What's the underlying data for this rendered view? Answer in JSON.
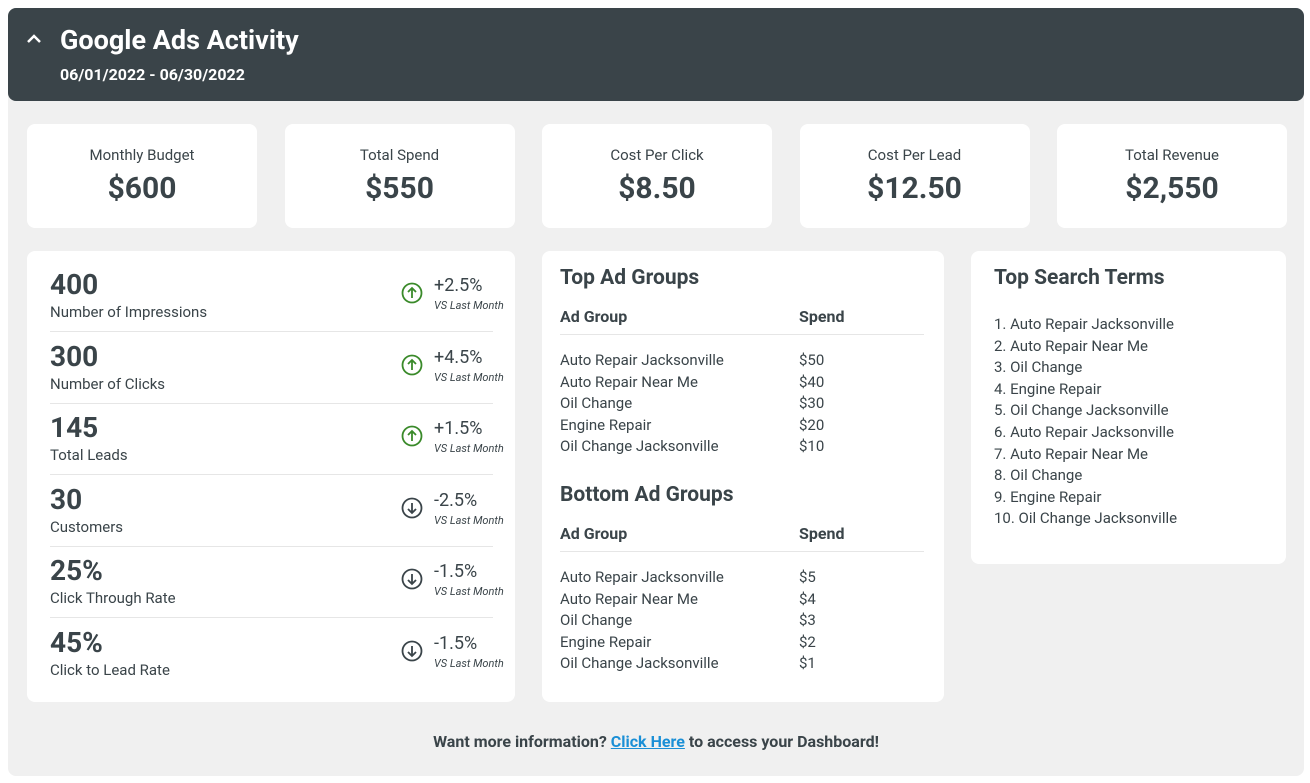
{
  "header": {
    "title": "Google Ads Activity",
    "date_range": "06/01/2022 - 06/30/2022"
  },
  "kpis": [
    {
      "label": "Monthly Budget",
      "value": "$600"
    },
    {
      "label": "Total Spend",
      "value": "$550"
    },
    {
      "label": "Cost Per Click",
      "value": "$8.50"
    },
    {
      "label": "Cost Per Lead",
      "value": "$12.50"
    },
    {
      "label": "Total Revenue",
      "value": "$2,550"
    }
  ],
  "metrics": [
    {
      "value": "400",
      "label": "Number of Impressions",
      "change": "+2.5%",
      "compare": "VS Last Month"
    },
    {
      "value": "300",
      "label": "Number of Clicks",
      "change": "+4.5%",
      "compare": "VS Last Month"
    },
    {
      "value": "145",
      "label": "Total Leads",
      "change": "+1.5%",
      "compare": "VS Last Month"
    },
    {
      "value": "30",
      "label": "Customers",
      "change": "-2.5%",
      "compare": "VS Last Month"
    },
    {
      "value": "25%",
      "label": "Click Through Rate",
      "change": "-1.5%",
      "compare": "VS Last Month"
    },
    {
      "value": "45%",
      "label": "Click to Lead Rate",
      "change": "-1.5%",
      "compare": "VS Last Month"
    }
  ],
  "top_ad_groups": {
    "title": "Top Ad Groups",
    "columns": [
      "Ad Group",
      "Spend"
    ],
    "rows": [
      [
        "Auto Repair Jacksonville",
        "$50"
      ],
      [
        "Auto Repair Near Me",
        "$40"
      ],
      [
        "Oil Change",
        "$30"
      ],
      [
        "Engine Repair",
        "$20"
      ],
      [
        "Oil Change Jacksonville",
        "$10"
      ]
    ]
  },
  "bottom_ad_groups": {
    "title": "Bottom Ad Groups",
    "columns": [
      "Ad Group",
      "Spend"
    ],
    "rows": [
      [
        "Auto Repair Jacksonville",
        "$5"
      ],
      [
        "Auto Repair Near Me",
        "$4"
      ],
      [
        "Oil Change",
        "$3"
      ],
      [
        "Engine Repair",
        "$2"
      ],
      [
        "Oil Change Jacksonville",
        "$1"
      ]
    ]
  },
  "top_search_terms": {
    "title": "Top Search Terms",
    "items": [
      "1. Auto Repair Jacksonville",
      "2. Auto Repair Near Me",
      "3. Oil Change",
      "4. Engine Repair",
      "5. Oil Change Jacksonville",
      "6. Auto Repair Jacksonville",
      "7. Auto Repair Near Me",
      "8. Oil Change",
      "9. Engine Repair",
      "10. Oil Change Jacksonville"
    ]
  },
  "footer": {
    "before": "Want more information?",
    "link": "Click Here",
    "after": "to access your Dashboard!"
  }
}
